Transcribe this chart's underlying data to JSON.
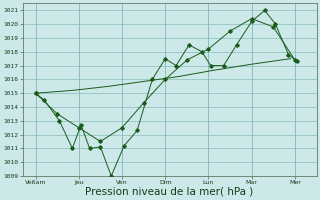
{
  "bg_color": "#cce8e8",
  "grid_color": "#88bbbb",
  "line_color": "#1a5c1a",
  "marker_color": "#1a5c1a",
  "xlabel": "Pression niveau de la mer( hPa )",
  "xlabel_fontsize": 7.5,
  "ylim": [
    1009,
    1021.5
  ],
  "yticks": [
    1009,
    1010,
    1011,
    1012,
    1013,
    1014,
    1015,
    1016,
    1017,
    1018,
    1019,
    1020,
    1021
  ],
  "xtick_labels": [
    "Ve6am",
    "Jeu",
    "Ven",
    "Dim",
    "Lun",
    "Mar",
    "Mer"
  ],
  "xtick_positions": [
    0,
    1,
    2,
    3,
    4,
    5,
    6
  ],
  "series1_x": [
    0,
    0.2,
    0.55,
    0.85,
    1.05,
    1.25,
    1.5,
    1.75,
    2.05,
    2.35,
    2.7,
    3.0,
    3.25,
    3.55,
    3.85,
    4.05,
    4.35,
    4.65,
    5.0,
    5.3,
    5.55,
    5.85,
    6.05
  ],
  "series1_y": [
    1015.0,
    1014.5,
    1013.0,
    1011.0,
    1012.7,
    1011.0,
    1011.1,
    1009.0,
    1011.2,
    1012.3,
    1016.0,
    1017.5,
    1017.0,
    1018.5,
    1018.0,
    1017.0,
    1017.0,
    1018.5,
    1020.2,
    1021.0,
    1020.0,
    1017.8,
    1017.3
  ],
  "series2_x": [
    0,
    0.85,
    1.7,
    2.5,
    3.3,
    4.1,
    5.0,
    5.9
  ],
  "series2_y": [
    1015.0,
    1015.2,
    1015.5,
    1015.85,
    1016.2,
    1016.65,
    1017.1,
    1017.5
  ],
  "series3_x": [
    0,
    0.5,
    1.0,
    1.5,
    2.0,
    2.5,
    3.0,
    3.5,
    4.0,
    4.5,
    5.0,
    5.5,
    6.0
  ],
  "series3_y": [
    1015.0,
    1013.5,
    1012.5,
    1011.5,
    1012.5,
    1014.3,
    1016.0,
    1017.4,
    1018.2,
    1019.5,
    1020.4,
    1019.8,
    1017.4
  ]
}
